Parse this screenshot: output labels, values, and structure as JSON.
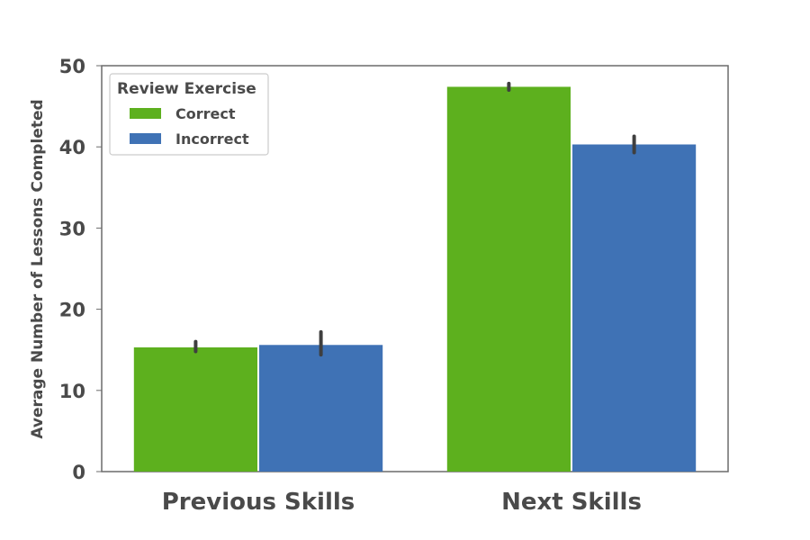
{
  "chart_data": {
    "type": "bar",
    "categories": [
      "Previous Skills",
      "Next Skills"
    ],
    "series": [
      {
        "name": "Correct",
        "color": "#5db01e",
        "values": [
          15.3,
          47.4
        ],
        "err_low": [
          14.8,
          47.0
        ],
        "err_high": [
          16.0,
          47.8
        ]
      },
      {
        "name": "Incorrect",
        "color": "#3f72b5",
        "values": [
          15.6,
          40.3
        ],
        "err_low": [
          14.4,
          39.3
        ],
        "err_high": [
          17.2,
          41.3
        ]
      }
    ],
    "xlabel": "",
    "ylabel": "Average Number of Lessons Completed",
    "ylim": [
      0,
      50
    ],
    "yticks": [
      0,
      10,
      20,
      30,
      40,
      50
    ],
    "legend": {
      "title": "Review Exercise",
      "position": "top-left"
    },
    "grid": false
  }
}
